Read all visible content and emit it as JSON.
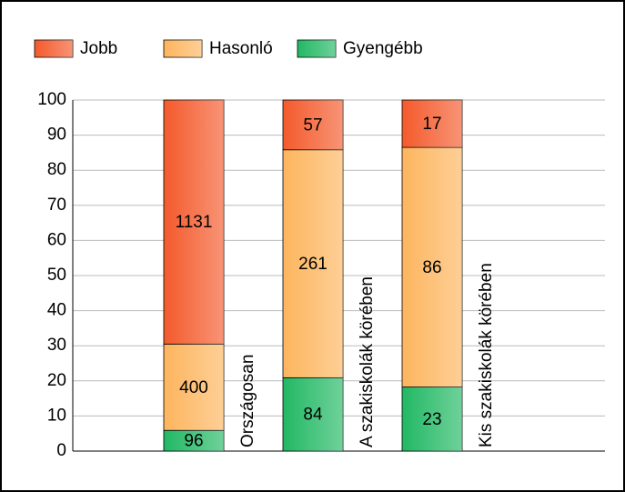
{
  "chart_data": {
    "type": "bar",
    "stacking": "percent",
    "categories": [
      "Országosan",
      "A szakiskolák körében",
      "Kis szakiskolák körében"
    ],
    "series": [
      {
        "name": "Gyengébb",
        "color": "#22b864",
        "values": [
          96,
          84,
          23
        ]
      },
      {
        "name": "Hasonló",
        "color": "#fdb55e",
        "values": [
          400,
          261,
          86
        ]
      },
      {
        "name": "Jobb",
        "color": "#f45a2c",
        "values": [
          1131,
          57,
          17
        ]
      }
    ],
    "legend_order": [
      2,
      1,
      0
    ],
    "ylim": [
      0,
      100
    ],
    "yticks": [
      0,
      10,
      20,
      30,
      40,
      50,
      60,
      70,
      80,
      90,
      100
    ],
    "grid": true
  }
}
